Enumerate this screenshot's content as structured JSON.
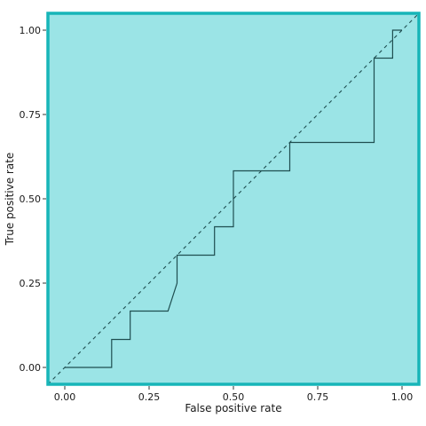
{
  "chart_data": {
    "type": "line",
    "title": "",
    "xlabel": "False positive rate",
    "ylabel": "True positive rate",
    "xlim": [
      -0.05,
      1.05
    ],
    "ylim": [
      -0.05,
      1.05
    ],
    "xticks": [
      0.0,
      0.25,
      0.5,
      0.75,
      1.0
    ],
    "yticks": [
      0.0,
      0.25,
      0.5,
      0.75,
      1.0
    ],
    "xtick_labels": [
      "0.00",
      "0.25",
      "0.50",
      "0.75",
      "1.00"
    ],
    "ytick_labels": [
      "0.00",
      "0.25",
      "0.50",
      "0.75",
      "1.00"
    ],
    "grid": false,
    "legend": "none",
    "colors": {
      "plot_background": "#9be4e6",
      "frame": "#17b5b8",
      "roc_line": "#1f4e50",
      "diagonal": "#1f4e50"
    },
    "series": [
      {
        "style": "solid",
        "x": [
          0.0,
          0.139,
          0.139,
          0.194,
          0.194,
          0.306,
          0.333,
          0.333,
          0.444,
          0.444,
          0.5,
          0.5,
          0.667,
          0.667,
          0.917,
          0.917,
          0.972,
          0.972,
          1.0
        ],
        "y": [
          0.0,
          0.0,
          0.083,
          0.083,
          0.167,
          0.167,
          0.25,
          0.333,
          0.333,
          0.417,
          0.417,
          0.583,
          0.583,
          0.667,
          0.667,
          0.917,
          0.917,
          1.0,
          1.0
        ]
      },
      {
        "style": "dashed",
        "x": [
          -0.05,
          1.05
        ],
        "y": [
          -0.05,
          1.05
        ]
      }
    ]
  }
}
